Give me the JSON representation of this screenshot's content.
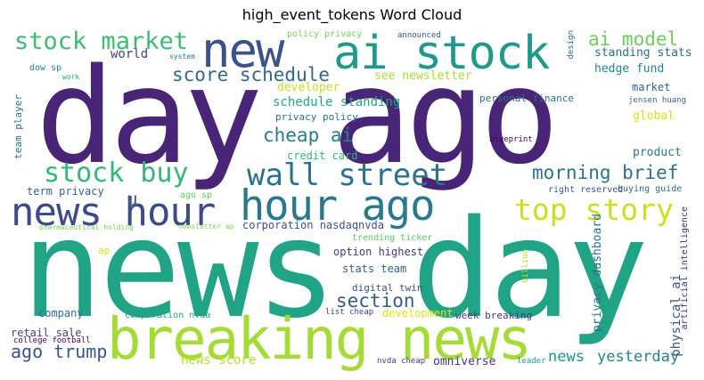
{
  "title": "high_event_tokens Word Cloud",
  "words": [
    {
      "text": "day ago",
      "color": "#482576"
    },
    {
      "text": "news day",
      "color": "#21a486"
    },
    {
      "text": "breaking news",
      "color": "#a5db36"
    },
    {
      "text": "hour ago",
      "color": "#2a788e"
    },
    {
      "text": "news hour",
      "color": "#3e4a89"
    },
    {
      "text": "ai stock",
      "color": "#1f9a8a"
    },
    {
      "text": "new",
      "color": "#3b528b"
    },
    {
      "text": "wall street",
      "color": "#2c728e"
    },
    {
      "text": "top story",
      "color": "#c8e020"
    },
    {
      "text": "stock buy",
      "color": "#35b779"
    },
    {
      "text": "stock market",
      "color": "#3fbc73"
    },
    {
      "text": "ai model",
      "color": "#6ece58"
    },
    {
      "text": "score schedule",
      "color": "#31688e"
    },
    {
      "text": "cheap ai",
      "color": "#287c8e"
    },
    {
      "text": "morning brief",
      "color": "#2d718e"
    },
    {
      "text": "u",
      "color": "#365d8d"
    },
    {
      "text": "section",
      "color": "#38598c"
    },
    {
      "text": "ago trump",
      "color": "#39558c"
    },
    {
      "text": "news",
      "color": "#21918c"
    },
    {
      "text": "yesterday",
      "color": "#26828e"
    },
    {
      "text": "news score",
      "color": "#b5de2b"
    },
    {
      "text": "world",
      "color": "#414487"
    },
    {
      "text": "standing stats",
      "color": "#2e6e8e"
    },
    {
      "text": "hedge fund",
      "color": "#25838e"
    },
    {
      "text": "market",
      "color": "#33638d"
    },
    {
      "text": "global",
      "color": "#d2e21b"
    },
    {
      "text": "product",
      "color": "#2a768e"
    },
    {
      "text": "buying guide",
      "color": "#2f6b8e"
    },
    {
      "text": "schedule standing",
      "color": "#22a785"
    },
    {
      "text": "developer",
      "color": "#c0df25"
    },
    {
      "text": "privacy policy",
      "color": "#2c728e"
    },
    {
      "text": "credit card",
      "color": "#31b57b"
    },
    {
      "text": "term privacy",
      "color": "#33638d"
    },
    {
      "text": "corporation nasdaqnvda",
      "color": "#3b528b"
    },
    {
      "text": "trending ticker",
      "color": "#5ec962"
    },
    {
      "text": "option highest",
      "color": "#443983"
    },
    {
      "text": "stats team",
      "color": "#33638d"
    },
    {
      "text": "digital twin",
      "color": "#3b528b"
    },
    {
      "text": "list cheap",
      "color": "#424086"
    },
    {
      "text": "development",
      "color": "#dde318"
    },
    {
      "text": "week breaking",
      "color": "#443a83"
    },
    {
      "text": "company",
      "color": "#2d708e"
    },
    {
      "text": "corporation nvda",
      "color": "#20a386"
    },
    {
      "text": "retail sale",
      "color": "#414487"
    },
    {
      "text": "college football",
      "color": "#440154"
    },
    {
      "text": "omniverse",
      "color": "#46327e"
    },
    {
      "text": "nvda cheap",
      "color": "#453781"
    },
    {
      "text": "leader",
      "color": "#1fa088"
    },
    {
      "text": "billion",
      "color": "#b8de29"
    },
    {
      "text": "privacy dashboard",
      "color": "#2b748e"
    },
    {
      "text": "physical ai",
      "color": "#3a538b"
    },
    {
      "text": "artificial intelligence",
      "color": "#482878"
    },
    {
      "text": "right reserved",
      "color": "#39568c"
    },
    {
      "text": "blueprint",
      "color": "#440154"
    },
    {
      "text": "jensen huang",
      "color": "#31688e"
    },
    {
      "text": "personal finance",
      "color": "#2e6d8e"
    },
    {
      "text": "see newsletter",
      "color": "#a8db34"
    },
    {
      "text": "policy privacy",
      "color": "#75d054"
    },
    {
      "text": "announced",
      "color": "#3b528b"
    },
    {
      "text": "design",
      "color": "#2f6c8e"
    },
    {
      "text": "system",
      "color": "#2c738e"
    },
    {
      "text": "dow sp",
      "color": "#25858e"
    },
    {
      "text": "work",
      "color": "#1e9b8a"
    },
    {
      "text": "team player",
      "color": "#2d708e"
    },
    {
      "text": "ago sp",
      "color": "#5ec962"
    },
    {
      "text": "newsletter ap",
      "color": "#7ad151"
    },
    {
      "text": "pharmaceutical holding",
      "color": "#75d054"
    },
    {
      "text": "ap",
      "color": "#d8e219"
    }
  ]
}
